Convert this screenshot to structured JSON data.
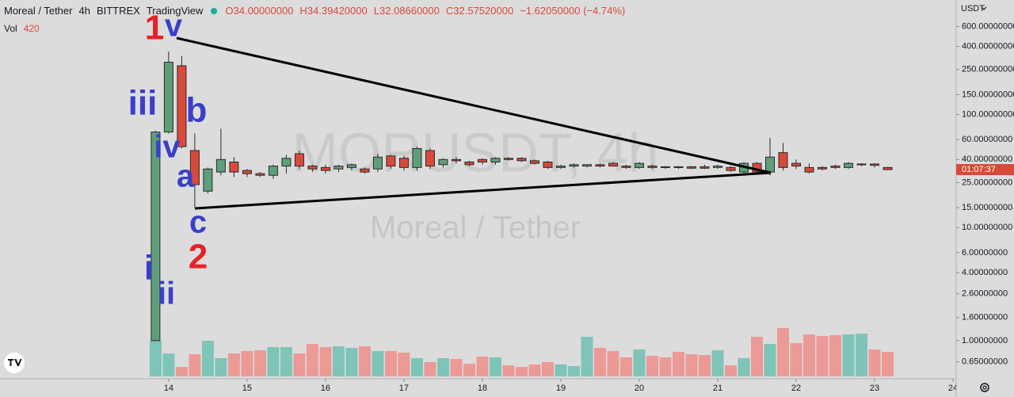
{
  "header": {
    "symbol": "Moreal / Tether",
    "interval": "4h",
    "exchange": "BITTREX",
    "source": "TradingView",
    "ohlc": [
      "O34.00000000",
      "H34.39420000",
      "L32.08660000",
      "C32.57520000"
    ],
    "change": "−1.62050000 (−4.74%)",
    "volume_label": "Vol",
    "volume_value": 420
  },
  "chart_data": {
    "type": "candlestick",
    "watermark": "MORUSDT, 4h",
    "watermark_subtitle": "Moreal / Tether",
    "currency": "USDT",
    "countdown": "01:07:37",
    "log_scale": true,
    "grid": false,
    "up_color": "#5f9e7a",
    "down_color": "#d9493a",
    "volume_up_color": "#7ec4b8",
    "volume_down_color": "#ec9a96",
    "x": [
      13.8333,
      14,
      14.1667,
      14.3333,
      14.5,
      14.6667,
      14.8333,
      15,
      15.1667,
      15.3333,
      15.5,
      15.6667,
      15.8333,
      16,
      16.1667,
      16.3333,
      16.5,
      16.6667,
      16.8333,
      17,
      17.1667,
      17.3333,
      17.5,
      17.6667,
      17.8333,
      18,
      18.1667,
      18.3333,
      18.5,
      18.6667,
      18.8333,
      19,
      19.1667,
      19.3333,
      19.5,
      19.6667,
      19.8333,
      20,
      20.1667,
      20.3333,
      20.5,
      20.6667,
      20.8333,
      21,
      21.1667,
      21.3333,
      21.5,
      21.6667,
      21.8333,
      22,
      22.1667,
      22.3333,
      22.5,
      22.6667,
      22.8333,
      23,
      23.1667
    ],
    "open": [
      1.0,
      70,
      270,
      48,
      21,
      31,
      38,
      32,
      30,
      29,
      35,
      45,
      35,
      34,
      33,
      34,
      33,
      33,
      43,
      41,
      34,
      48,
      36,
      40,
      38,
      40,
      38,
      41,
      41,
      39,
      38,
      34,
      35,
      35,
      36,
      37,
      35,
      34,
      35,
      34.5,
      34.5,
      34.5,
      34.5,
      34,
      34,
      31,
      37,
      31,
      46,
      37,
      34,
      34,
      35,
      34,
      36,
      36.5,
      34
    ],
    "high": [
      72,
      360,
      330,
      68,
      34,
      75,
      42,
      33,
      31,
      36,
      44,
      48,
      36,
      36,
      36,
      37,
      34,
      45,
      44,
      43,
      52,
      50,
      41,
      42,
      39,
      41,
      42,
      42,
      42,
      40,
      39,
      36,
      37,
      36,
      37,
      38,
      36,
      38,
      36,
      35,
      35,
      35,
      36,
      36,
      35,
      38,
      38,
      62,
      56,
      40,
      37,
      35,
      36,
      38,
      37,
      37,
      34.3942
    ],
    "low": [
      1.0,
      68,
      50,
      15,
      20,
      29,
      28,
      28,
      28,
      27,
      30,
      33,
      31,
      30,
      31,
      32,
      30,
      31,
      33,
      32,
      32,
      33,
      34,
      37,
      35,
      36,
      36,
      39,
      38,
      36,
      33,
      33,
      34,
      34,
      34,
      35,
      33,
      33,
      33,
      33,
      33,
      33,
      33,
      33,
      31,
      29,
      30,
      29,
      32,
      33,
      30,
      32,
      33,
      33,
      35,
      34,
      32.0866
    ],
    "close": [
      70,
      290,
      52,
      24,
      33,
      40,
      31,
      30,
      29,
      35,
      41,
      35,
      33,
      32,
      35,
      36,
      31,
      42,
      35,
      34,
      50,
      35,
      40,
      39,
      36,
      38,
      41,
      40,
      39,
      37,
      34,
      35,
      36,
      36,
      35,
      35,
      34,
      37,
      34,
      34,
      34,
      33.5,
      33.5,
      35,
      32,
      37,
      31,
      42,
      34,
      35,
      31,
      33,
      34,
      37,
      36.5,
      35.5,
      32.5752
    ],
    "volume": [
      45,
      29,
      12,
      28,
      45,
      23,
      29,
      32,
      33,
      37,
      37,
      29,
      41,
      37,
      38,
      36,
      38,
      32,
      32,
      30,
      23,
      18,
      23,
      22,
      16,
      25,
      24,
      14,
      12,
      15,
      18,
      15,
      13,
      50,
      36,
      32,
      24,
      34,
      26,
      24,
      31,
      28,
      27,
      33,
      14,
      23,
      50,
      41,
      61,
      42,
      53,
      51,
      52,
      53,
      54,
      34,
      31
    ],
    "xlim": [
      11.85,
      24.04
    ],
    "xticks": [
      14,
      15,
      16,
      17,
      18,
      19,
      20,
      21,
      22,
      23,
      24
    ],
    "ylim": [
      0.46,
      1030
    ],
    "yticks": [
      {
        "value": 600,
        "label": "600.00000000"
      },
      {
        "value": 400,
        "label": "400.00000000"
      },
      {
        "value": 250,
        "label": "250.00000000"
      },
      {
        "value": 150,
        "label": "150.00000000"
      },
      {
        "value": 100,
        "label": "100.00000000"
      },
      {
        "value": 60,
        "label": "60.00000000"
      },
      {
        "value": 40,
        "label": "40.00000000"
      },
      {
        "value": 25,
        "label": "25.00000000"
      },
      {
        "value": 15,
        "label": "15.00000000"
      },
      {
        "value": 10,
        "label": "10.00000000"
      },
      {
        "value": 6,
        "label": "6.00000000"
      },
      {
        "value": 4,
        "label": "4.00000000"
      },
      {
        "value": 2.6,
        "label": "2.60000000"
      },
      {
        "value": 1.6,
        "label": "1.60000000"
      },
      {
        "value": 1,
        "label": "1.00000000"
      },
      {
        "value": 0.65,
        "label": "0.65000000"
      }
    ],
    "annotations": [
      {
        "text": "1",
        "color": "#e8202a"
      },
      {
        "text": "v",
        "color": "#3a3fc9"
      },
      {
        "text": "iii",
        "color": "#3a3fc9"
      },
      {
        "text": "b",
        "color": "#3a3fc9"
      },
      {
        "text": "iv",
        "color": "#3a3fc9"
      },
      {
        "text": "a",
        "color": "#3a3fc9"
      },
      {
        "text": "c",
        "color": "#3a3fc9"
      },
      {
        "text": "2",
        "color": "#e8202a"
      },
      {
        "text": "i",
        "color": "#3a3fc9"
      },
      {
        "text": "ii",
        "color": "#3a3fc9"
      }
    ]
  }
}
